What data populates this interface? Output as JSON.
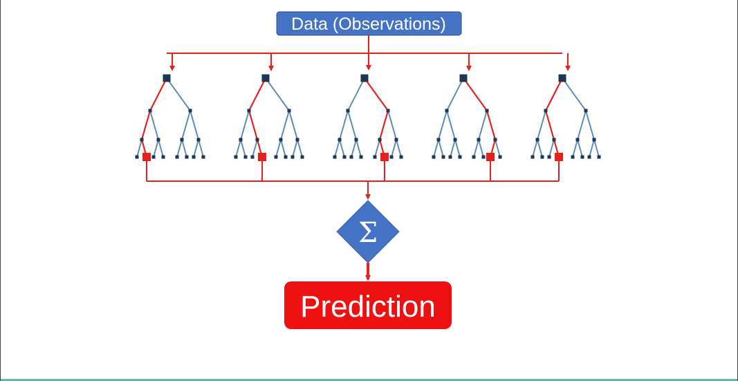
{
  "data_label": "Data (Observations)",
  "aggregator_symbol": "Σ",
  "prediction_label": "Prediction",
  "colors": {
    "data_box": "#4472c4",
    "edge": "#5b8db8",
    "node": "#1f3550",
    "highlight": "#e8201c",
    "aggregator": "#4472c4",
    "prediction_box": "#ee1111",
    "bottom_rule": "#5bbfa9"
  },
  "trees": [
    {
      "name": "tree-1",
      "path": [
        0,
        0,
        1,
        0
      ]
    },
    {
      "name": "tree-2",
      "path": [
        0,
        1,
        1,
        1
      ]
    },
    {
      "name": "tree-3",
      "path": [
        1,
        0,
        1,
        0
      ]
    },
    {
      "name": "tree-4",
      "path": [
        1,
        1,
        0,
        1
      ]
    },
    {
      "name": "tree-5",
      "path": [
        0,
        1,
        1,
        1
      ]
    }
  ]
}
